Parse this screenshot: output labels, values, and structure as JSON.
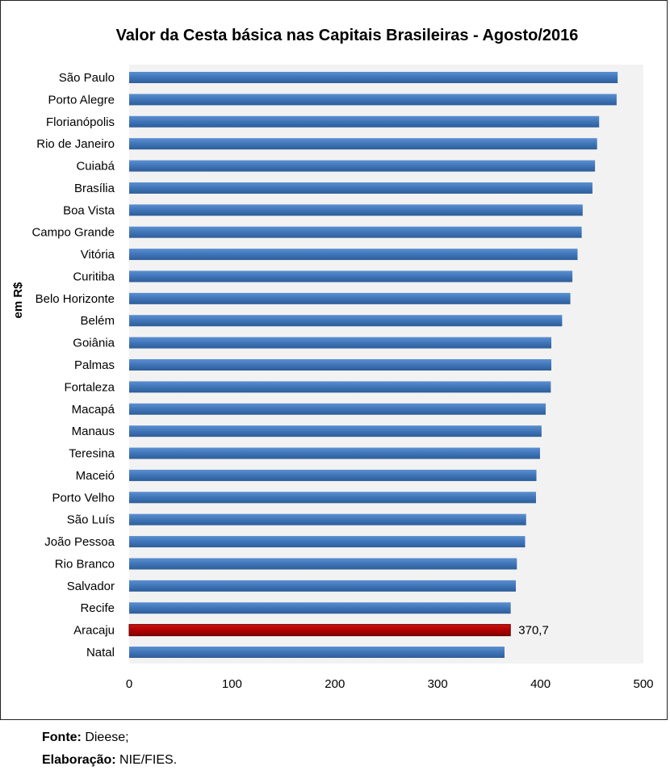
{
  "chart_data": {
    "type": "bar",
    "orientation": "horizontal",
    "title": "Valor da Cesta básica nas Capitais Brasileiras -  Agosto/2016",
    "ylabel": "em R$",
    "xlabel": "",
    "xlim": [
      0,
      500
    ],
    "xticks": [
      0,
      100,
      200,
      300,
      400,
      500
    ],
    "categories": [
      "São Paulo",
      "Porto Alegre",
      "Florianópolis",
      "Rio de Janeiro",
      "Cuiabá",
      "Brasília",
      "Boa Vista",
      "Campo Grande",
      "Vitória",
      "Curitiba",
      "Belo Horizonte",
      "Belém",
      "Goiânia",
      "Palmas",
      "Fortaleza",
      "Macapá",
      "Manaus",
      "Teresina",
      "Maceió",
      "Porto Velho",
      "São Luís",
      "João Pessoa",
      "Rio Branco",
      "Salvador",
      "Recife",
      "Aracaju",
      "Natal"
    ],
    "values": [
      475,
      474,
      457,
      455,
      453,
      450.5,
      441,
      440,
      436,
      431,
      429,
      421,
      410.5,
      410.5,
      410,
      405,
      401,
      399.5,
      396,
      395.6,
      386,
      385,
      377,
      376,
      371,
      370.7,
      365
    ],
    "highlight": {
      "category": "Aracaju",
      "label": "370,7",
      "color": "#c00000"
    },
    "bar_color": "#4a7ebb",
    "grid": false
  },
  "footer": {
    "source_label": "Fonte:",
    "source_value": " Dieese;",
    "made_label": "Elaboração:",
    "made_value": " NIE/FIES."
  }
}
